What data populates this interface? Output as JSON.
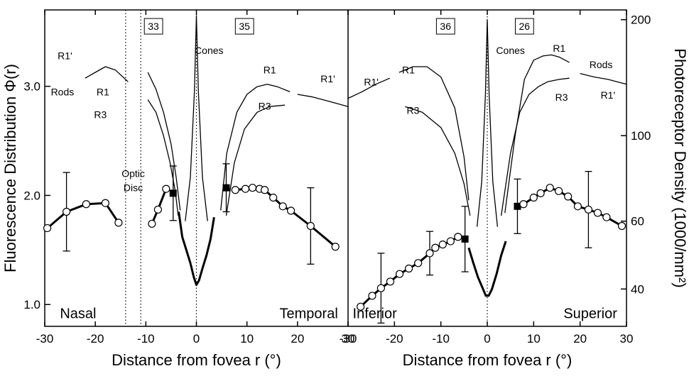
{
  "chart_data": {
    "type": "line",
    "xlim": [
      -30,
      30
    ],
    "xticks": [
      -30,
      -20,
      -10,
      0,
      10,
      20,
      30
    ],
    "ylim": [
      0.8,
      3.7
    ],
    "yticks": [
      {
        "value": 1,
        "label": "1.0"
      },
      {
        "value": 2,
        "label": "2.0"
      },
      {
        "value": 3,
        "label": "3.0"
      }
    ],
    "ylabel": "Fluorescence Distribution Φ(r)",
    "y2lim": [
      32,
      212
    ],
    "y2scale": "log",
    "y2ticks": [
      40,
      60,
      100,
      200
    ],
    "y2label": "Photoreceptor Density (1000/mm²)",
    "color": "#000000",
    "panels": [
      {
        "xlabel": "Distance from fovea  r (°)",
        "vlines": [
          -14,
          -11,
          0
        ],
        "series": [
          {
            "x": [
              -29.5,
              -25.7,
              -21.8,
              -18,
              -15.4
            ],
            "values": [
              1.7,
              1.85,
              1.92,
              1.93,
              1.75
            ],
            "errors": [
              null,
              0.36,
              null,
              null,
              null
            ],
            "marker": "circle",
            "width": 3
          },
          {
            "x": [
              -8.8,
              -7.6,
              -6.0
            ],
            "values": [
              1.74,
              1.87,
              2.06
            ],
            "marker": "circle",
            "width": 3
          },
          {
            "x": [
              -4.6
            ],
            "values": [
              2.02
            ],
            "errors": [
              0.25
            ],
            "marker": "square",
            "width": 3
          },
          {
            "x": [
              -3.5,
              -2.8,
              -2,
              -1.2,
              -0.5,
              0,
              0.5,
              1.2,
              2,
              2.8,
              3.5
            ],
            "values": [
              1.85,
              1.62,
              1.5,
              1.38,
              1.25,
              1.18,
              1.22,
              1.33,
              1.45,
              1.6,
              1.8
            ],
            "width": 3
          },
          {
            "x": [
              5.9
            ],
            "values": [
              2.07
            ],
            "errors": [
              0.22
            ],
            "marker": "square",
            "width": 3
          },
          {
            "x": [
              7.7,
              9.7,
              11.1,
              12.5,
              13.5,
              15.2,
              17.1,
              18.7,
              22.6,
              27.5
            ],
            "values": [
              2.05,
              2.06,
              2.07,
              2.06,
              2.05,
              1.98,
              1.9,
              1.86,
              1.72,
              1.53
            ],
            "errors": [
              null,
              null,
              null,
              null,
              null,
              null,
              null,
              null,
              0.35,
              null
            ],
            "marker": "circle",
            "width": 3
          },
          {
            "axis": "y2",
            "x": [
              -22,
              -20,
              -18,
              -16,
              -13.5
            ],
            "values": [
              141,
              146,
              151,
              148,
              138
            ],
            "width": 1.3
          },
          {
            "axis": "y2",
            "x": [
              -9.6,
              -8,
              -6.5,
              -5,
              -4,
              -3.2
            ],
            "values": [
              146,
              132,
              115,
              95,
              78,
              64
            ],
            "width": 1.3
          },
          {
            "axis": "y2",
            "x": [
              -9.6,
              -8,
              -6.5,
              -5.2,
              -4.2,
              -3.6
            ],
            "values": [
              124,
              115,
              100,
              85,
              72,
              62
            ],
            "width": 1.3
          },
          {
            "axis": "y2",
            "x": [
              -2.2,
              -1.2,
              -0.4,
              0,
              0.4,
              1.2,
              2.2
            ],
            "values": [
              60,
              78,
              130,
              205,
              130,
              78,
              60
            ],
            "width": 1.3
          },
          {
            "axis": "y2",
            "x": [
              4.8,
              6,
              8,
              10,
              12,
              14,
              16,
              18.5
            ],
            "values": [
              64,
              90,
              115,
              128,
              134,
              136,
              134,
              130
            ],
            "width": 1.3
          },
          {
            "axis": "y2",
            "x": [
              5.9,
              7.5,
              9.5,
              12,
              14.5,
              17.5
            ],
            "values": [
              62,
              85,
              104,
              115,
              119,
              120
            ],
            "width": 1.3
          },
          {
            "axis": "y2",
            "x": [
              20,
              23,
              26,
              30
            ],
            "values": [
              128,
              126,
              123,
              119
            ],
            "width": 1.3
          }
        ],
        "annotations": [
          {
            "text": "Nasal",
            "x": -27,
            "y": 0.92,
            "large": true,
            "anchor": "start"
          },
          {
            "text": "Temporal",
            "x": 28,
            "y": 0.92,
            "large": true,
            "anchor": "end"
          },
          {
            "text": "Optic",
            "x": -12.5,
            "y": 2.2
          },
          {
            "text": "Disc",
            "x": -12.5,
            "y": 2.07
          },
          {
            "text": "33",
            "x": -8.5,
            "y": 3.55,
            "boxed": true
          },
          {
            "text": "35",
            "x": 9.5,
            "y": 3.55,
            "boxed": true
          },
          {
            "text": "Cones",
            "x": 2.5,
            "y": 3.33
          },
          {
            "text": "R1'",
            "x": -26,
            "y": 3.28
          },
          {
            "text": "Rods",
            "x": -26.5,
            "y": 2.95
          },
          {
            "text": "R1",
            "x": -18.5,
            "y": 2.95
          },
          {
            "text": "R3",
            "x": -19,
            "y": 2.74
          },
          {
            "text": "R1",
            "x": 14.5,
            "y": 3.15
          },
          {
            "text": "R1'",
            "x": 26,
            "y": 3.07
          },
          {
            "text": "R3",
            "x": 13.5,
            "y": 2.82
          }
        ]
      },
      {
        "xlabel": "Distance from fovea  r (°)",
        "vlines": [
          0
        ],
        "series": [
          {
            "x": [
              -27.3,
              -24.8,
              -22.9,
              -20.9,
              -18.9,
              -16.9,
              -14.9,
              -12.4,
              -11.2,
              -9.6,
              -7.9,
              -6.3
            ],
            "values": [
              0.98,
              1.08,
              1.15,
              1.21,
              1.28,
              1.33,
              1.38,
              1.47,
              1.52,
              1.55,
              1.58,
              1.62
            ],
            "errors": [
              null,
              null,
              0.32,
              null,
              null,
              null,
              null,
              0.2,
              null,
              null,
              null,
              null
            ],
            "marker": "circle",
            "width": 3
          },
          {
            "x": [
              -4.8
            ],
            "values": [
              1.6
            ],
            "errors": [
              0.3
            ],
            "marker": "square",
            "width": 3
          },
          {
            "x": [
              -4,
              -3,
              -2,
              -1,
              -0.3,
              0.3,
              1,
              2,
              3,
              4
            ],
            "values": [
              1.52,
              1.38,
              1.25,
              1.15,
              1.08,
              1.08,
              1.14,
              1.28,
              1.45,
              1.58
            ],
            "width": 3
          },
          {
            "x": [
              6.5
            ],
            "values": [
              1.9
            ],
            "errors": [
              0.25
            ],
            "marker": "square",
            "width": 3
          },
          {
            "x": [
              7.8,
              10,
              11.5,
              13.5,
              15.4,
              17.4,
              19.5,
              21.8,
              23.8,
              25.7,
              29
            ],
            "values": [
              1.92,
              1.98,
              2.02,
              2.07,
              2.04,
              1.99,
              1.9,
              1.87,
              1.84,
              1.8,
              1.72
            ],
            "errors": [
              null,
              null,
              null,
              null,
              null,
              null,
              null,
              0.35,
              null,
              null,
              null
            ],
            "marker": "circle",
            "width": 3
          },
          {
            "axis": "y2",
            "x": [
              -30,
              -27,
              -24,
              -21
            ],
            "values": [
              125,
              130,
              136,
              141
            ],
            "width": 1.3
          },
          {
            "axis": "y2",
            "x": [
              -19,
              -16,
              -13,
              -10,
              -7,
              -5,
              -4
            ],
            "values": [
              146,
              151,
              151,
              142,
              118,
              88,
              68
            ],
            "width": 1.3
          },
          {
            "axis": "y2",
            "x": [
              -17.7,
              -14,
              -10,
              -7,
              -5,
              -3.7
            ],
            "values": [
              119,
              115,
              105,
              90,
              75,
              62
            ],
            "width": 1.3
          },
          {
            "axis": "y2",
            "x": [
              -2.2,
              -1.2,
              -0.4,
              0,
              0.4,
              1.2,
              2.2
            ],
            "values": [
              58,
              76,
              128,
              200,
              128,
              76,
              58
            ],
            "width": 1.3
          },
          {
            "axis": "y2",
            "x": [
              3.8,
              6,
              8,
              10,
              12,
              13.8,
              15.5,
              17.7
            ],
            "values": [
              63,
              100,
              140,
              157,
              161,
              162,
              160,
              155
            ],
            "width": 1.3
          },
          {
            "axis": "y2",
            "x": [
              3,
              5,
              7,
              9,
              11,
              13,
              15.5,
              17.7
            ],
            "values": [
              62,
              90,
              115,
              128,
              134,
              138,
              140,
              141
            ],
            "width": 1.3
          },
          {
            "axis": "y2",
            "x": [
              20,
              23,
              26,
              30
            ],
            "values": [
              145,
              142,
              140,
              136
            ],
            "width": 1.3
          }
        ],
        "annotations": [
          {
            "text": "Inferior",
            "x": -29,
            "y": 0.92,
            "large": true,
            "anchor": "start"
          },
          {
            "text": "Superior",
            "x": 28,
            "y": 0.92,
            "large": true,
            "anchor": "end"
          },
          {
            "text": "36",
            "x": -9,
            "y": 3.55,
            "boxed": true
          },
          {
            "text": "26",
            "x": 8,
            "y": 3.55,
            "boxed": true
          },
          {
            "text": "Cones",
            "x": 5,
            "y": 3.33
          },
          {
            "text": "R1'",
            "x": -25,
            "y": 3.04
          },
          {
            "text": "R1",
            "x": -17,
            "y": 3.15
          },
          {
            "text": "R3",
            "x": -16,
            "y": 2.78
          },
          {
            "text": "R1",
            "x": 15.5,
            "y": 3.35
          },
          {
            "text": "R3",
            "x": 16,
            "y": 2.9
          },
          {
            "text": "Rods",
            "x": 24.5,
            "y": 3.2
          },
          {
            "text": "R1'",
            "x": 26,
            "y": 2.92
          }
        ]
      }
    ]
  }
}
